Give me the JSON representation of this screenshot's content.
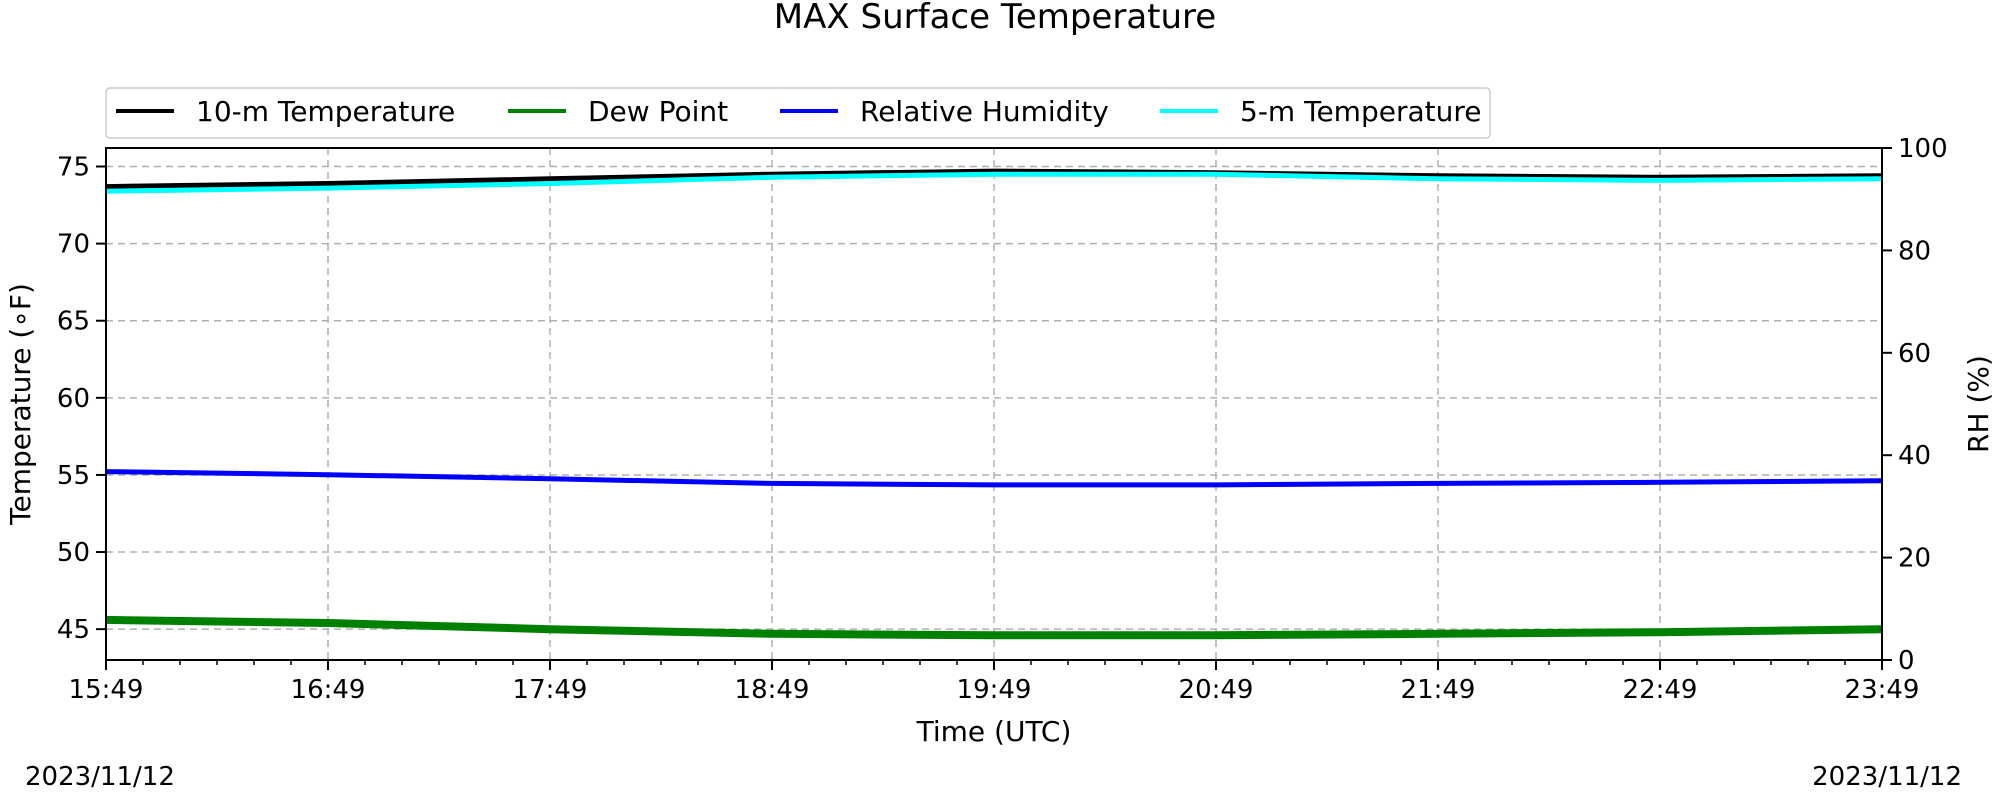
{
  "chart_data": {
    "type": "line",
    "title": "MAX Surface Temperature",
    "xlabel": "Time (UTC)",
    "ylabel": "Temperature (∘F)",
    "y2label": "RH (%)",
    "start_date": "2023/11/12",
    "end_date": "2023/11/12",
    "x_ticks": [
      "15:49",
      "16:49",
      "17:49",
      "18:49",
      "19:49",
      "20:49",
      "21:49",
      "22:49",
      "23:49"
    ],
    "ylim": [
      43,
      76.2
    ],
    "y_ticks": [
      45,
      50,
      55,
      60,
      65,
      70,
      75
    ],
    "y2lim": [
      0,
      100
    ],
    "y2_ticks": [
      0,
      20,
      40,
      60,
      80,
      100
    ],
    "grid": true,
    "legend_position": "top-left",
    "series": [
      {
        "name": "10-m Temperature",
        "axis": "left",
        "color": "#000000",
        "x": [
          "15:49",
          "16:49",
          "17:49",
          "18:49",
          "19:49",
          "20:49",
          "21:49",
          "22:49",
          "23:49"
        ],
        "values": [
          73.7,
          73.9,
          74.2,
          74.5,
          74.7,
          74.6,
          74.4,
          74.3,
          74.4
        ]
      },
      {
        "name": "Dew Point",
        "axis": "left",
        "color": "#008000",
        "x": [
          "15:49",
          "16:49",
          "17:49",
          "18:49",
          "19:49",
          "20:49",
          "21:49",
          "22:49",
          "23:49"
        ],
        "values": [
          45.6,
          45.4,
          45.0,
          44.7,
          44.6,
          44.6,
          44.7,
          44.8,
          45.0
        ]
      },
      {
        "name": "Relative Humidity",
        "axis": "right",
        "color": "#0000ff",
        "x": [
          "15:49",
          "16:49",
          "17:49",
          "18:49",
          "19:49",
          "20:49",
          "21:49",
          "22:49",
          "23:49"
        ],
        "values": [
          36.8,
          36.2,
          35.4,
          34.5,
          34.2,
          34.2,
          34.5,
          34.7,
          35.0
        ]
      },
      {
        "name": "5-m Temperature",
        "axis": "left",
        "color": "#00ffff",
        "x": [
          "15:49",
          "16:49",
          "17:49",
          "18:49",
          "19:49",
          "20:49",
          "21:49",
          "22:49",
          "23:49"
        ],
        "values": [
          73.4,
          73.6,
          73.9,
          74.3,
          74.5,
          74.5,
          74.2,
          74.1,
          74.2
        ]
      }
    ]
  }
}
